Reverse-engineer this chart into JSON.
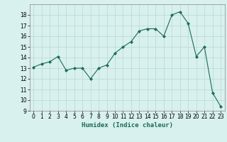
{
  "x": [
    0,
    1,
    2,
    3,
    4,
    5,
    6,
    7,
    8,
    9,
    10,
    11,
    12,
    13,
    14,
    15,
    16,
    17,
    18,
    19,
    20,
    21,
    22,
    23
  ],
  "y": [
    13.1,
    13.4,
    13.6,
    14.1,
    12.8,
    13.0,
    13.0,
    12.0,
    13.0,
    13.3,
    14.4,
    15.0,
    15.5,
    16.5,
    16.7,
    16.7,
    16.0,
    18.0,
    18.3,
    17.2,
    14.1,
    15.0,
    10.7,
    9.4
  ],
  "line_color": "#1a6b5a",
  "marker": "D",
  "marker_size": 2,
  "bg_color": "#d8f0ee",
  "grid_color": "#b8d8d4",
  "xlabel": "Humidex (Indice chaleur)",
  "xlim": [
    -0.5,
    23.5
  ],
  "ylim": [
    9,
    19
  ],
  "yticks": [
    9,
    10,
    11,
    12,
    13,
    14,
    15,
    16,
    17,
    18
  ],
  "xticks": [
    0,
    1,
    2,
    3,
    4,
    5,
    6,
    7,
    8,
    9,
    10,
    11,
    12,
    13,
    14,
    15,
    16,
    17,
    18,
    19,
    20,
    21,
    22,
    23
  ],
  "tick_fontsize": 5.5,
  "label_fontsize": 6.5
}
